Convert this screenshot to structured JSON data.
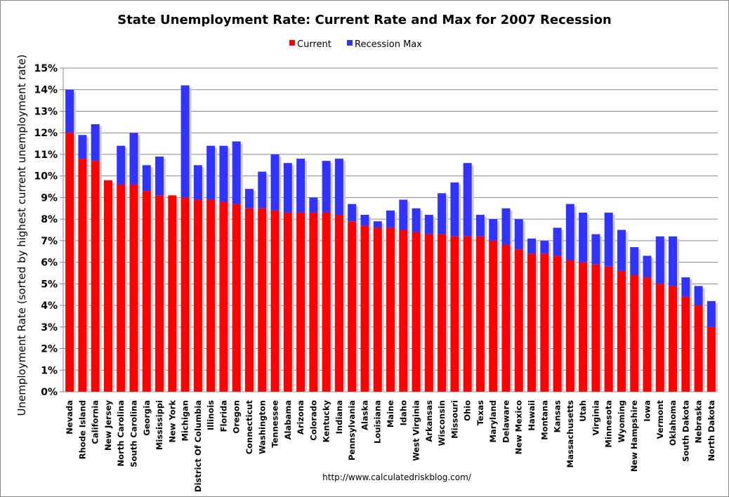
{
  "chart_data": {
    "type": "bar",
    "stacked_overlay": true,
    "title": "State Unemployment Rate: Current Rate and Max for 2007 Recession",
    "xlabel": "",
    "ylabel": "Unemployment Rate (sorted by highest current unemployment rate)",
    "ylim": [
      0,
      15
    ],
    "yticks": [
      "0%",
      "1%",
      "2%",
      "3%",
      "4%",
      "5%",
      "6%",
      "7%",
      "8%",
      "9%",
      "10%",
      "11%",
      "12%",
      "13%",
      "14%",
      "15%"
    ],
    "grid": true,
    "legend_position": "top-center",
    "source_note": "http://www.calculatedriskblog.com/",
    "categories": [
      "Nevada",
      "Rhode Island",
      "California",
      "New Jersey",
      "North Carolina",
      "South Carolina",
      "Georgia",
      "Mississippi",
      "New York",
      "Michigan",
      "District Of Columbia",
      "Illinois",
      "Florida",
      "Oregon",
      "Connecticut",
      "Washington",
      "Tennessee",
      "Alabama",
      "Arizona",
      "Colorado",
      "Kentucky",
      "Indiana",
      "Pennsylvania",
      "Alaska",
      "Louisiana",
      "Maine",
      "Idaho",
      "West Virginia",
      "Arkansas",
      "Wisconsin",
      "Missouri",
      "Ohio",
      "Texas",
      "Maryland",
      "Delaware",
      "New Mexico",
      "Hawaii",
      "Montana",
      "Kansas",
      "Massachusetts",
      "Utah",
      "Virginia",
      "Minnesota",
      "Wyoming",
      "New Hampshire",
      "Iowa",
      "Vermont",
      "Oklahoma",
      "South Dakota",
      "Nebraska",
      "North Dakota"
    ],
    "series": [
      {
        "name": "Current",
        "color": "#ff0000",
        "values": [
          12.0,
          10.8,
          10.7,
          9.8,
          9.6,
          9.6,
          9.3,
          9.1,
          9.1,
          9.0,
          8.9,
          8.9,
          8.8,
          8.7,
          8.5,
          8.5,
          8.4,
          8.3,
          8.3,
          8.3,
          8.3,
          8.2,
          7.9,
          7.7,
          7.6,
          7.6,
          7.5,
          7.4,
          7.3,
          7.3,
          7.2,
          7.2,
          7.2,
          7.0,
          6.8,
          6.6,
          6.4,
          6.4,
          6.3,
          6.1,
          6.0,
          5.9,
          5.8,
          5.6,
          5.4,
          5.3,
          5.0,
          4.9,
          4.4,
          4.0,
          3.0
        ]
      },
      {
        "name": "Recession Max",
        "color": "#3333ff",
        "values": [
          14.0,
          11.9,
          12.4,
          9.8,
          11.4,
          12.0,
          10.5,
          10.9,
          9.1,
          14.2,
          10.5,
          11.4,
          11.4,
          11.6,
          9.4,
          10.2,
          11.0,
          10.6,
          10.8,
          9.0,
          10.7,
          10.8,
          8.7,
          8.2,
          7.9,
          8.4,
          8.9,
          8.5,
          8.2,
          9.2,
          9.7,
          10.6,
          8.2,
          8.0,
          8.5,
          8.0,
          7.1,
          7.0,
          7.6,
          8.7,
          8.3,
          7.3,
          8.3,
          7.5,
          6.7,
          6.3,
          7.2,
          7.2,
          5.3,
          4.9,
          4.2
        ]
      }
    ]
  }
}
